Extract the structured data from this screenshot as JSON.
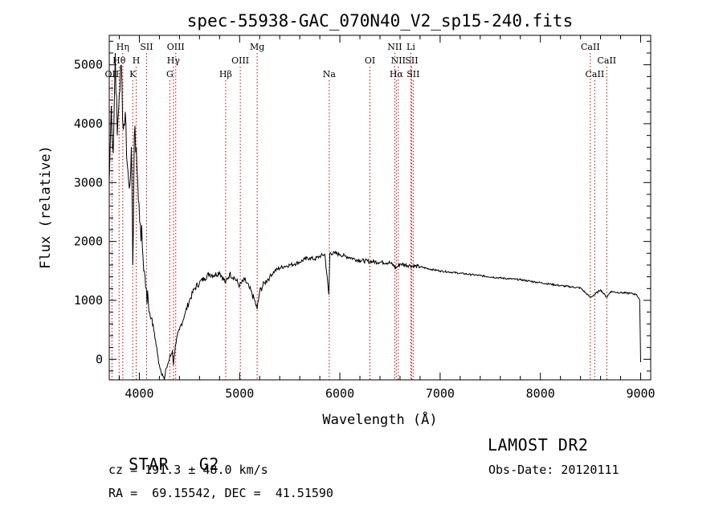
{
  "chart_data": {
    "type": "line",
    "title": "spec-55938-GAC_070N40_V2_sp15-240.fits",
    "xlabel": "Wavelength (Å)",
    "ylabel": "Flux (relative)",
    "xlim": [
      3700,
      9100
    ],
    "ylim": [
      -350,
      5500
    ],
    "xticks": [
      4000,
      5000,
      6000,
      7000,
      8000,
      9000
    ],
    "yticks": [
      0,
      1000,
      2000,
      3000,
      4000,
      5000
    ],
    "grid": false,
    "line_color": "#000000",
    "marker_color": "#cc0000",
    "series": [
      {
        "x": [
          3700,
          3720,
          3740,
          3760,
          3780,
          3800,
          3820,
          3840,
          3860,
          3880,
          3900,
          3920,
          3935,
          3950,
          3970,
          3990,
          4010,
          4030,
          4050,
          4070,
          4090,
          4101,
          4120,
          4150,
          4180,
          4200,
          4230,
          4250,
          4270,
          4300,
          4330,
          4340,
          4360,
          4400,
          4450,
          4500,
          4550,
          4600,
          4650,
          4700,
          4750,
          4800,
          4861,
          4900,
          4950,
          5000,
          5050,
          5100,
          5150,
          5175,
          5200,
          5250,
          5300,
          5350,
          5400,
          5450,
          5500,
          5550,
          5600,
          5650,
          5700,
          5750,
          5800,
          5850,
          5890,
          5900,
          5950,
          6000,
          6050,
          6100,
          6150,
          6200,
          6300,
          6400,
          6500,
          6563,
          6600,
          6700,
          6800,
          6900,
          7000,
          7200,
          7400,
          7600,
          7800,
          8000,
          8200,
          8400,
          8498,
          8542,
          8600,
          8662,
          8700,
          8800,
          8900,
          8960,
          8990,
          9000
        ],
        "y": [
          3000,
          4300,
          3500,
          5200,
          3800,
          4500,
          5000,
          3900,
          4200,
          3300,
          2900,
          3600,
          1600,
          3800,
          3600,
          2700,
          2300,
          1900,
          1500,
          1200,
          950,
          800,
          700,
          450,
          100,
          -100,
          -250,
          -350,
          -150,
          0,
          150,
          -100,
          250,
          500,
          750,
          1000,
          1200,
          1300,
          1380,
          1450,
          1430,
          1480,
          1300,
          1450,
          1380,
          1250,
          1350,
          1200,
          1000,
          850,
          1150,
          1300,
          1400,
          1500,
          1550,
          1580,
          1600,
          1620,
          1650,
          1700,
          1720,
          1700,
          1750,
          1780,
          1100,
          1800,
          1800,
          1780,
          1750,
          1730,
          1700,
          1680,
          1660,
          1650,
          1640,
          1550,
          1620,
          1590,
          1570,
          1530,
          1500,
          1460,
          1420,
          1380,
          1350,
          1300,
          1250,
          1210,
          1050,
          1100,
          1180,
          1050,
          1150,
          1130,
          1120,
          1100,
          1000,
          -50
        ]
      }
    ],
    "line_markers": [
      {
        "label": "OII",
        "x": 3727,
        "row": 3
      },
      {
        "label": "Hη",
        "x": 3835,
        "row": 1
      },
      {
        "label": "Hθ",
        "x": 3798,
        "row": 2
      },
      {
        "label": "H",
        "x": 3969,
        "row": 2
      },
      {
        "label": "K",
        "x": 3934,
        "row": 3
      },
      {
        "label": "SII",
        "x": 4072,
        "row": 1
      },
      {
        "label": "OIII",
        "x": 4363,
        "row": 1
      },
      {
        "label": "Hγ",
        "x": 4340,
        "row": 2
      },
      {
        "label": "G",
        "x": 4304,
        "row": 3
      },
      {
        "label": "Hβ",
        "x": 4861,
        "row": 3
      },
      {
        "label": "OIII",
        "x": 5007,
        "row": 2
      },
      {
        "label": "Mg",
        "x": 5175,
        "row": 1
      },
      {
        "label": "Na",
        "x": 5894,
        "row": 3
      },
      {
        "label": "OI",
        "x": 6300,
        "row": 2
      },
      {
        "label": "NII",
        "x": 6548,
        "row": 1
      },
      {
        "label": "Li",
        "x": 6708,
        "row": 1
      },
      {
        "label": "NII",
        "x": 6583,
        "row": 2
      },
      {
        "label": "SII",
        "x": 6716,
        "row": 2
      },
      {
        "label": "Hα",
        "x": 6563,
        "row": 3
      },
      {
        "label": "SII",
        "x": 6731,
        "row": 3
      },
      {
        "label": "CaII",
        "x": 8498,
        "row": 1
      },
      {
        "label": "CaII",
        "x": 8662,
        "row": 2
      },
      {
        "label": "CaII",
        "x": 8542,
        "row": 3
      }
    ]
  },
  "info": {
    "class_label": "STAR",
    "subclass": "G2",
    "survey": "LAMOST DR2",
    "redshift": "cz = 191.3 ± 48.0 km/s",
    "obs_date": "Obs-Date: 20120111",
    "coords": "RA =  69.15542, DEC =  41.51590"
  }
}
